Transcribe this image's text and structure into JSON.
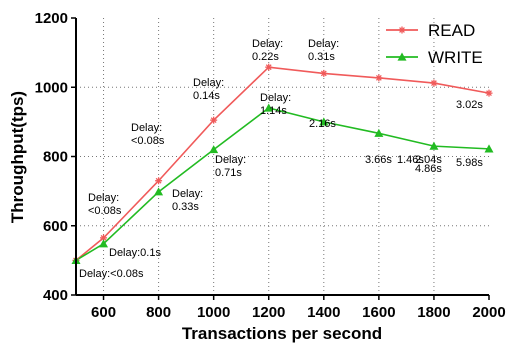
{
  "chart_data": {
    "type": "line",
    "xlabel": "Transactions per second",
    "ylabel": "Throughput(tps)",
    "x": [
      500,
      600,
      800,
      1000,
      1200,
      1400,
      1600,
      1800,
      2000
    ],
    "xticks": [
      "600",
      "800",
      "1000",
      "1200",
      "1400",
      "1600",
      "1800",
      "2000"
    ],
    "yticks": [
      "400",
      "600",
      "800",
      "1000",
      "1200"
    ],
    "xlim": [
      500,
      2000
    ],
    "ylim": [
      400,
      1200
    ],
    "grid": true,
    "legend_position": "top-right",
    "series": [
      {
        "name": "READ",
        "color": "#f05a5a",
        "marker": "star",
        "values": [
          500,
          565,
          730,
          905,
          1058,
          1040,
          1027,
          1012,
          983
        ],
        "annotations": [
          "",
          "Delay:\n<0.08s",
          "Delay:\n<0.08s",
          "Delay:\n0.14s",
          "Delay:\n0.22s",
          "Delay:\n0.31s",
          "1.46s",
          "2.04s",
          "3.02s"
        ]
      },
      {
        "name": "WRITE",
        "color": "#22bb22",
        "marker": "triangle",
        "values": [
          500,
          548,
          698,
          820,
          940,
          900,
          867,
          830,
          822
        ],
        "annotations": [
          "Delay:<0.08s",
          "Delay:0.1s",
          "Delay:\n0.33s",
          "Delay:\n0.71s",
          "Delay:\n1.14s",
          "2.16s",
          "3.66s",
          "4.86s",
          "5.98s"
        ]
      }
    ]
  }
}
